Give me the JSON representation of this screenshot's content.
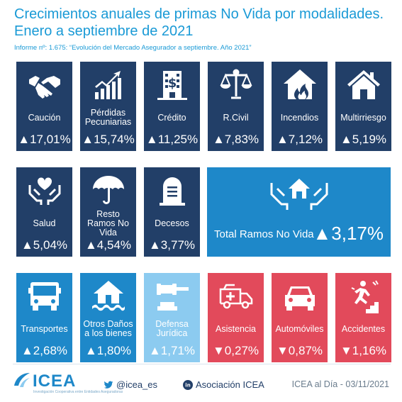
{
  "header": {
    "title_line1": "Crecimientos anuales de primas No Vida por modalidades.",
    "title_line2": "Enero a septiembre de 2021",
    "subtitle": "Informe nº: 1.675: “Evolución del Mercado Asegurador a septiembre. Año 2021”"
  },
  "tiles": [
    {
      "label": "Caución",
      "value": "▲17,01%",
      "icon": "handshake-icon"
    },
    {
      "label": "Pérdidas Pecuniarias",
      "value": "▲15,74%",
      "icon": "growth-chart-icon"
    },
    {
      "label": "Crédito",
      "value": "▲11,25%",
      "icon": "bank-building-icon"
    },
    {
      "label": "R.Civil",
      "value": "▲7,83%",
      "icon": "scales-icon"
    },
    {
      "label": "Incendios",
      "value": "▲7,12%",
      "icon": "house-fire-icon"
    },
    {
      "label": "Multirriesgo",
      "value": "▲5,19%",
      "icon": "house-icon"
    },
    {
      "label": "Salud",
      "value": "▲5,04%",
      "icon": "hands-heart-icon"
    },
    {
      "label": "Resto Ramos No Vida",
      "value": "▲4,54%",
      "icon": "umbrella-icon"
    },
    {
      "label": "Decesos",
      "value": "▲3,77%",
      "icon": "tombstone-icon"
    },
    {
      "label": "Transportes",
      "value": "▲2,68%",
      "icon": "bus-icon"
    },
    {
      "label": "Otros Daños a los bienes",
      "value": "▲1,80%",
      "icon": "flooded-house-icon"
    },
    {
      "label": "Defensa Jurídica",
      "value": "▲1,71%",
      "icon": "gavel-icon"
    },
    {
      "label": "Asistencia",
      "value": "▼0,27%",
      "icon": "ambulance-icon"
    },
    {
      "label": "Automóviles",
      "value": "▼0,87%",
      "icon": "car-icon"
    },
    {
      "label": "Accidentes",
      "value": "▼1,16%",
      "icon": "falling-person-icon"
    }
  ],
  "total": {
    "label": "Total Ramos No Vida",
    "value": "▲3,17%",
    "icon": "hands-house-icon"
  },
  "footer": {
    "logo": "ICEA",
    "logo_tagline": "Investigación Cooperativa entre Entidades Aseguradoras",
    "twitter": "@icea_es",
    "twitter_icon": "twitter-icon",
    "linkedin": "Asociación ICEA",
    "linkedin_icon": "linkedin-icon",
    "date": "ICEA al Día - 03/11/2021"
  },
  "colors": {
    "navy": "#223f68",
    "blue": "#1e88c9",
    "light_blue": "#8ccbf0",
    "red": "#e24a5b",
    "title": "#1a9ad6"
  }
}
